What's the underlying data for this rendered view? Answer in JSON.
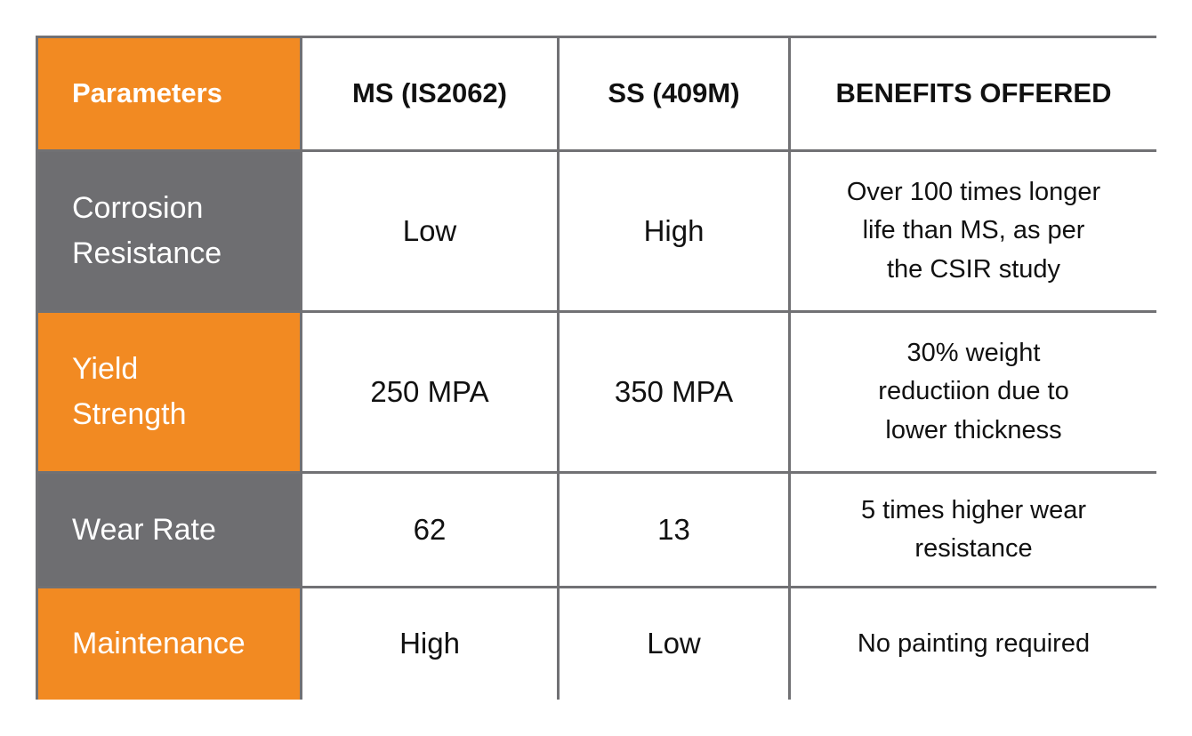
{
  "colors": {
    "orange": "#F28A22",
    "gray": "#6E6E71",
    "border": "#717174"
  },
  "table": {
    "headers": [
      "Parameters",
      "MS (IS2062)",
      "SS (409M)",
      "BENEFITS OFFERED"
    ],
    "rows": [
      {
        "parameter": "Corrosion\nResistance",
        "ms": "Low",
        "ss": "High",
        "benefit": "Over 100 times longer\nlife than MS, as per\nthe CSIR study",
        "shade": "gray"
      },
      {
        "parameter": "Yield\nStrength",
        "ms": "250 MPA",
        "ss": "350 MPA",
        "benefit": "30% weight\nreductiion due to\nlower thickness",
        "shade": "orange"
      },
      {
        "parameter": "Wear Rate",
        "ms": "62",
        "ss": "13",
        "benefit": "5 times higher wear\nresistance",
        "shade": "gray"
      },
      {
        "parameter": "Maintenance",
        "ms": "High",
        "ss": "Low",
        "benefit": "No painting required",
        "shade": "orange"
      }
    ]
  }
}
